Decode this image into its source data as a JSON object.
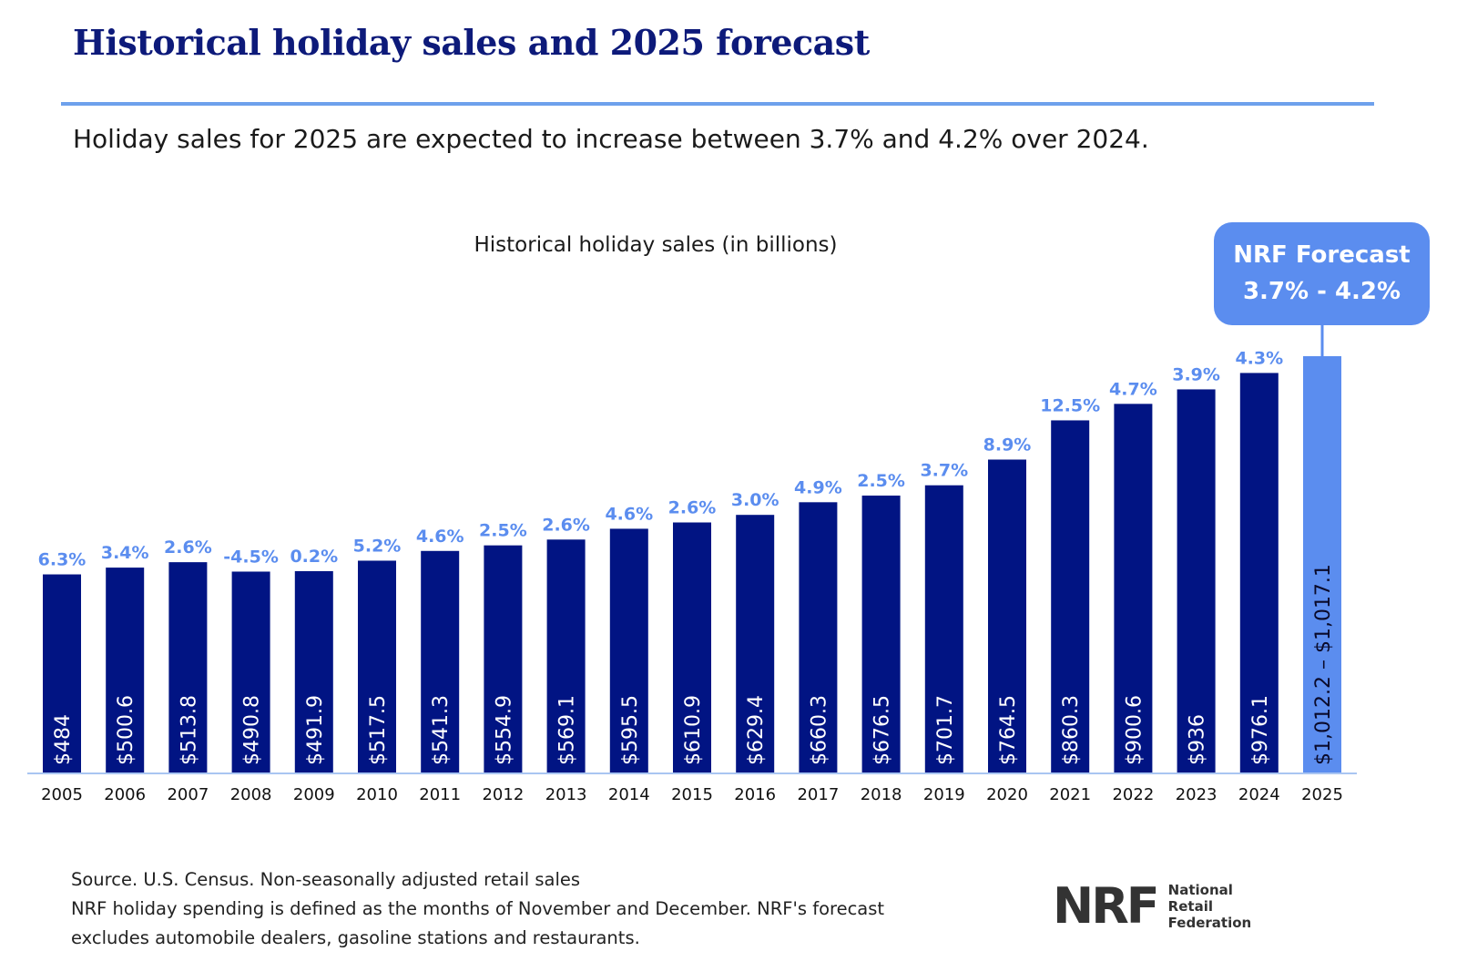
{
  "header": {
    "title": "Historical holiday sales and 2025 forecast",
    "subtitle": "Holiday sales for 2025 are expected to increase between 3.7% and 4.2% over 2024."
  },
  "forecast_box": {
    "line1": "NRF Forecast",
    "line2": "3.7% - 4.2%"
  },
  "chart_data": {
    "type": "bar",
    "title": "Historical holiday sales (in billions)",
    "xlabel": "",
    "ylabel": "",
    "ylim": [
      0,
      1017.1
    ],
    "grid": false,
    "categories": [
      "2005",
      "2006",
      "2007",
      "2008",
      "2009",
      "2010",
      "2011",
      "2012",
      "2013",
      "2014",
      "2015",
      "2016",
      "2017",
      "2018",
      "2019",
      "2020",
      "2021",
      "2022",
      "2023",
      "2024",
      "2025"
    ],
    "values": [
      484,
      500.6,
      513.8,
      490.8,
      491.9,
      517.5,
      541.3,
      554.9,
      569.1,
      595.5,
      610.9,
      629.4,
      660.3,
      676.5,
      701.7,
      764.5,
      860.3,
      900.6,
      936,
      976.1,
      1017.1
    ],
    "value_labels": [
      "$484",
      "$500.6",
      "$513.8",
      "$490.8",
      "$491.9",
      "$517.5",
      "$541.3",
      "$554.9",
      "$569.1",
      "$595.5",
      "$610.9",
      "$629.4",
      "$660.3",
      "$676.5",
      "$701.7",
      "$764.5",
      "$860.3",
      "$900.6",
      "$936",
      "$976.1",
      "$1,012.2 – $1,017.1"
    ],
    "growth_labels": [
      "6.3%",
      "3.4%",
      "2.6%",
      "-4.5%",
      "0.2%",
      "5.2%",
      "4.6%",
      "2.5%",
      "2.6%",
      "4.6%",
      "2.6%",
      "3.0%",
      "4.9%",
      "2.5%",
      "3.7%",
      "8.9%",
      "12.5%",
      "4.7%",
      "3.9%",
      "4.3%",
      ""
    ],
    "forecast_range": [
      1012.2,
      1017.1
    ],
    "colors": {
      "historical": "#011483",
      "forecast": "#5b8def",
      "growth_label": "#5b8def",
      "axis": "#a9c5f2"
    }
  },
  "footer": {
    "line1": "Source. U.S. Census. Non-seasonally adjusted retail sales",
    "line2": "NRF holiday spending is defined as the months of November and December. NRF's forecast",
    "line3": "excludes automobile dealers, gasoline stations and restaurants."
  },
  "logo": {
    "mark": "NRF",
    "line1": "National",
    "line2": "Retail",
    "line3": "Federation"
  }
}
